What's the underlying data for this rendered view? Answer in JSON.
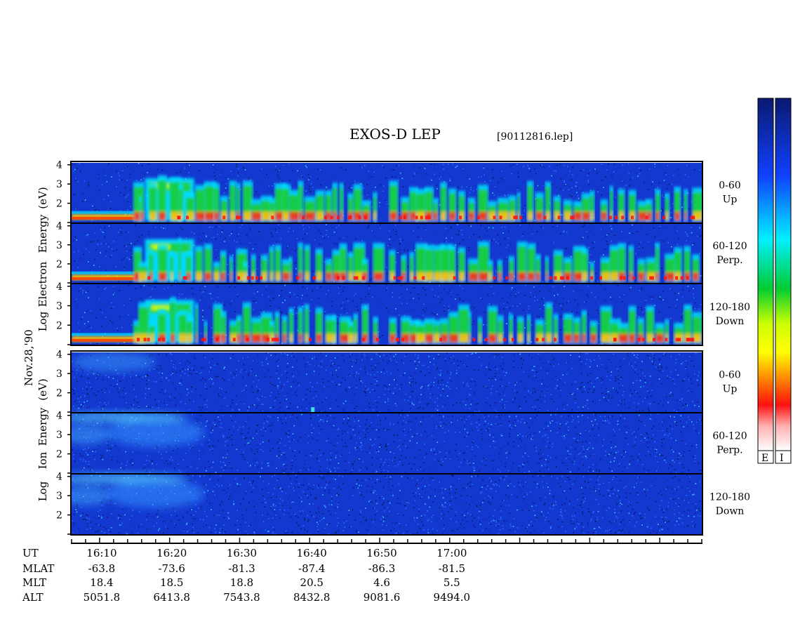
{
  "header": {
    "title": "EXOS-D LEP",
    "file": "[90112816.lep]"
  },
  "date_label": "Nov.28,'90",
  "colors": {
    "background_min": "#1030c8",
    "spectrum": [
      "#1020c0",
      "#2060ff",
      "#00e0ff",
      "#00d040",
      "#a0e000",
      "#ffff00",
      "#ffa000",
      "#ff2020",
      "#ffe0e0"
    ]
  },
  "colorbars": [
    {
      "key": "E"
    },
    {
      "key": "I"
    }
  ],
  "chart_data": {
    "type": "heatmap",
    "energy_ticks": [
      "4",
      "3",
      "2",
      "1"
    ],
    "electron_panel": {
      "ylabel_words": [
        "Log",
        "Electron",
        "Energy"
      ],
      "ylabel_unit": "(eV)",
      "channels": [
        {
          "range": "0-60",
          "dir": "Up"
        },
        {
          "range": "60-120",
          "dir": "Perp."
        },
        {
          "range": "120-180",
          "dir": "Down"
        }
      ]
    },
    "ion_panel": {
      "ylabel_words": [
        "Log",
        "Ion",
        "Energy"
      ],
      "ylabel_unit": "(eV)",
      "channels": [
        {
          "range": "0-60",
          "dir": "Up"
        },
        {
          "range": "60-120",
          "dir": "Perp."
        },
        {
          "range": "120-180",
          "dir": "Down"
        }
      ]
    },
    "x_range_ut_min": [
      966,
      1056
    ],
    "y_range_log_ev": [
      1,
      4.1
    ],
    "ephemeris": {
      "labels": [
        "UT",
        "MLAT",
        "MLT",
        "ALT"
      ],
      "ut_min": [
        970,
        980,
        990,
        1000,
        1010,
        1020
      ],
      "ut": [
        "16:10",
        "16:20",
        "16:30",
        "16:40",
        "16:50",
        "17:00"
      ],
      "mlat": [
        "-63.8",
        "-73.6",
        "-81.3",
        "-87.4",
        "-86.3",
        "-81.5"
      ],
      "mlt": [
        "18.4",
        "18.5",
        "18.8",
        "20.5",
        "4.6",
        "5.5"
      ],
      "alt": [
        "5051.8",
        "6413.8",
        "7543.8",
        "8432.8",
        "9081.6",
        "9494.0"
      ]
    }
  }
}
